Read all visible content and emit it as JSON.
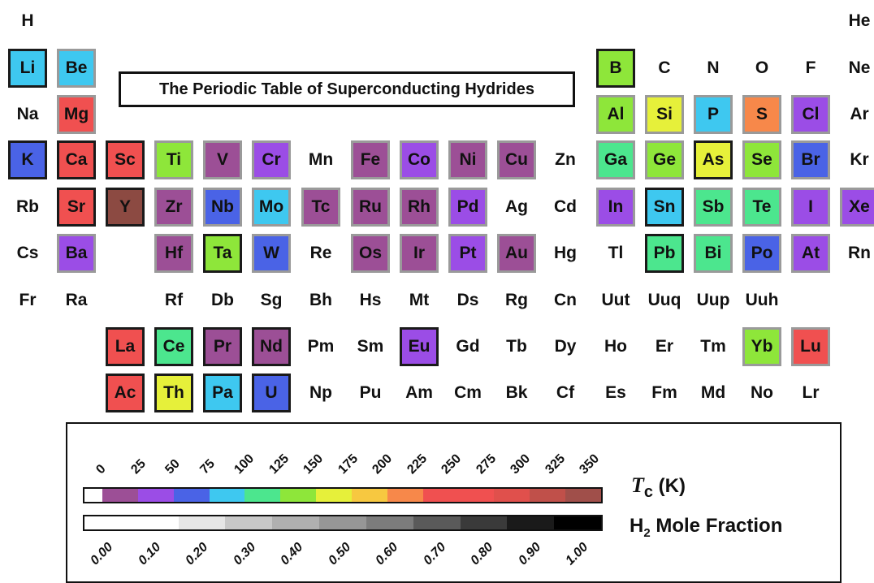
{
  "title": "The Periodic Table of Superconducting Hydrides",
  "elements": [
    {
      "symbol": "H",
      "row": 0,
      "col": 0,
      "color": null,
      "border": "none"
    },
    {
      "symbol": "He",
      "row": 0,
      "col": 17,
      "color": null,
      "border": "none"
    },
    {
      "symbol": "Li",
      "row": 1,
      "col": 0,
      "color": "#3ec8f0",
      "border": "dark"
    },
    {
      "symbol": "Be",
      "row": 1,
      "col": 1,
      "color": "#3ec8f0",
      "border": "grey"
    },
    {
      "symbol": "B",
      "row": 1,
      "col": 12,
      "color": "#8ee63a",
      "border": "dark"
    },
    {
      "symbol": "C",
      "row": 1,
      "col": 13,
      "color": null,
      "border": "none"
    },
    {
      "symbol": "N",
      "row": 1,
      "col": 14,
      "color": null,
      "border": "none"
    },
    {
      "symbol": "O",
      "row": 1,
      "col": 15,
      "color": null,
      "border": "none"
    },
    {
      "symbol": "F",
      "row": 1,
      "col": 16,
      "color": null,
      "border": "none"
    },
    {
      "symbol": "Ne",
      "row": 1,
      "col": 17,
      "color": null,
      "border": "none"
    },
    {
      "symbol": "Na",
      "row": 2,
      "col": 0,
      "color": null,
      "border": "none"
    },
    {
      "symbol": "Mg",
      "row": 2,
      "col": 1,
      "color": "#f05050",
      "border": "grey"
    },
    {
      "symbol": "Al",
      "row": 2,
      "col": 12,
      "color": "#8ee63a",
      "border": "grey"
    },
    {
      "symbol": "Si",
      "row": 2,
      "col": 13,
      "color": "#e6f03a",
      "border": "grey"
    },
    {
      "symbol": "P",
      "row": 2,
      "col": 14,
      "color": "#3ec8f0",
      "border": "grey"
    },
    {
      "symbol": "S",
      "row": 2,
      "col": 15,
      "color": "#f7884a",
      "border": "grey"
    },
    {
      "symbol": "Cl",
      "row": 2,
      "col": 16,
      "color": "#9b4de6",
      "border": "grey"
    },
    {
      "symbol": "Ar",
      "row": 2,
      "col": 17,
      "color": null,
      "border": "none"
    },
    {
      "symbol": "K",
      "row": 3,
      "col": 0,
      "color": "#4a63e6",
      "border": "dark"
    },
    {
      "symbol": "Ca",
      "row": 3,
      "col": 1,
      "color": "#f05050",
      "border": "dark"
    },
    {
      "symbol": "Sc",
      "row": 3,
      "col": 2,
      "color": "#f05050",
      "border": "dark"
    },
    {
      "symbol": "Ti",
      "row": 3,
      "col": 3,
      "color": "#8ee63a",
      "border": "grey"
    },
    {
      "symbol": "V",
      "row": 3,
      "col": 4,
      "color": "#9c4f96",
      "border": "grey"
    },
    {
      "symbol": "Cr",
      "row": 3,
      "col": 5,
      "color": "#9b4de6",
      "border": "grey"
    },
    {
      "symbol": "Mn",
      "row": 3,
      "col": 6,
      "color": null,
      "border": "none"
    },
    {
      "symbol": "Fe",
      "row": 3,
      "col": 7,
      "color": "#9c4f96",
      "border": "grey"
    },
    {
      "symbol": "Co",
      "row": 3,
      "col": 8,
      "color": "#9b4de6",
      "border": "grey"
    },
    {
      "symbol": "Ni",
      "row": 3,
      "col": 9,
      "color": "#9c4f96",
      "border": "grey"
    },
    {
      "symbol": "Cu",
      "row": 3,
      "col": 10,
      "color": "#9c4f96",
      "border": "grey"
    },
    {
      "symbol": "Zn",
      "row": 3,
      "col": 11,
      "color": null,
      "border": "none"
    },
    {
      "symbol": "Ga",
      "row": 3,
      "col": 12,
      "color": "#4ce68e",
      "border": "grey"
    },
    {
      "symbol": "Ge",
      "row": 3,
      "col": 13,
      "color": "#8ee63a",
      "border": "grey"
    },
    {
      "symbol": "As",
      "row": 3,
      "col": 14,
      "color": "#e6f03a",
      "border": "dark"
    },
    {
      "symbol": "Se",
      "row": 3,
      "col": 15,
      "color": "#8ee63a",
      "border": "grey"
    },
    {
      "symbol": "Br",
      "row": 3,
      "col": 16,
      "color": "#4a63e6",
      "border": "grey"
    },
    {
      "symbol": "Kr",
      "row": 3,
      "col": 17,
      "color": null,
      "border": "none"
    },
    {
      "symbol": "Rb",
      "row": 4,
      "col": 0,
      "color": null,
      "border": "none"
    },
    {
      "symbol": "Sr",
      "row": 4,
      "col": 1,
      "color": "#f05050",
      "border": "dark"
    },
    {
      "symbol": "Y",
      "row": 4,
      "col": 2,
      "color": "#8c4a42",
      "border": "dark"
    },
    {
      "symbol": "Zr",
      "row": 4,
      "col": 3,
      "color": "#9c4f96",
      "border": "grey"
    },
    {
      "symbol": "Nb",
      "row": 4,
      "col": 4,
      "color": "#4a63e6",
      "border": "grey"
    },
    {
      "symbol": "Mo",
      "row": 4,
      "col": 5,
      "color": "#3ec8f0",
      "border": "grey"
    },
    {
      "symbol": "Tc",
      "row": 4,
      "col": 6,
      "color": "#9c4f96",
      "border": "grey"
    },
    {
      "symbol": "Ru",
      "row": 4,
      "col": 7,
      "color": "#9c4f96",
      "border": "grey"
    },
    {
      "symbol": "Rh",
      "row": 4,
      "col": 8,
      "color": "#9c4f96",
      "border": "grey"
    },
    {
      "symbol": "Pd",
      "row": 4,
      "col": 9,
      "color": "#9b4de6",
      "border": "grey"
    },
    {
      "symbol": "Ag",
      "row": 4,
      "col": 10,
      "color": null,
      "border": "none"
    },
    {
      "symbol": "Cd",
      "row": 4,
      "col": 11,
      "color": null,
      "border": "none"
    },
    {
      "symbol": "In",
      "row": 4,
      "col": 12,
      "color": "#9b4de6",
      "border": "grey"
    },
    {
      "symbol": "Sn",
      "row": 4,
      "col": 13,
      "color": "#3ec8f0",
      "border": "dark"
    },
    {
      "symbol": "Sb",
      "row": 4,
      "col": 14,
      "color": "#4ce68e",
      "border": "grey"
    },
    {
      "symbol": "Te",
      "row": 4,
      "col": 15,
      "color": "#4ce68e",
      "border": "grey"
    },
    {
      "symbol": "I",
      "row": 4,
      "col": 16,
      "color": "#9b4de6",
      "border": "grey"
    },
    {
      "symbol": "Xe",
      "row": 4,
      "col": 17,
      "color": "#9b4de6",
      "border": "grey"
    },
    {
      "symbol": "Cs",
      "row": 5,
      "col": 0,
      "color": null,
      "border": "none"
    },
    {
      "symbol": "Ba",
      "row": 5,
      "col": 1,
      "color": "#9b4de6",
      "border": "grey"
    },
    {
      "symbol": "Hf",
      "row": 5,
      "col": 3,
      "color": "#9c4f96",
      "border": "grey"
    },
    {
      "symbol": "Ta",
      "row": 5,
      "col": 4,
      "color": "#8ee63a",
      "border": "dark"
    },
    {
      "symbol": "W",
      "row": 5,
      "col": 5,
      "color": "#4a63e6",
      "border": "grey"
    },
    {
      "symbol": "Re",
      "row": 5,
      "col": 6,
      "color": null,
      "border": "none"
    },
    {
      "symbol": "Os",
      "row": 5,
      "col": 7,
      "color": "#9c4f96",
      "border": "grey"
    },
    {
      "symbol": "Ir",
      "row": 5,
      "col": 8,
      "color": "#9c4f96",
      "border": "grey"
    },
    {
      "symbol": "Pt",
      "row": 5,
      "col": 9,
      "color": "#9b4de6",
      "border": "grey"
    },
    {
      "symbol": "Au",
      "row": 5,
      "col": 10,
      "color": "#9c4f96",
      "border": "grey"
    },
    {
      "symbol": "Hg",
      "row": 5,
      "col": 11,
      "color": null,
      "border": "none"
    },
    {
      "symbol": "Tl",
      "row": 5,
      "col": 12,
      "color": null,
      "border": "none"
    },
    {
      "symbol": "Pb",
      "row": 5,
      "col": 13,
      "color": "#4ce68e",
      "border": "dark"
    },
    {
      "symbol": "Bi",
      "row": 5,
      "col": 14,
      "color": "#4ce68e",
      "border": "grey"
    },
    {
      "symbol": "Po",
      "row": 5,
      "col": 15,
      "color": "#4a63e6",
      "border": "grey"
    },
    {
      "symbol": "At",
      "row": 5,
      "col": 16,
      "color": "#9b4de6",
      "border": "grey"
    },
    {
      "symbol": "Rn",
      "row": 5,
      "col": 17,
      "color": null,
      "border": "none"
    },
    {
      "symbol": "Fr",
      "row": 6,
      "col": 0,
      "color": null,
      "border": "none"
    },
    {
      "symbol": "Ra",
      "row": 6,
      "col": 1,
      "color": null,
      "border": "none"
    },
    {
      "symbol": "Rf",
      "row": 6,
      "col": 3,
      "color": null,
      "border": "none"
    },
    {
      "symbol": "Db",
      "row": 6,
      "col": 4,
      "color": null,
      "border": "none"
    },
    {
      "symbol": "Sg",
      "row": 6,
      "col": 5,
      "color": null,
      "border": "none"
    },
    {
      "symbol": "Bh",
      "row": 6,
      "col": 6,
      "color": null,
      "border": "none"
    },
    {
      "symbol": "Hs",
      "row": 6,
      "col": 7,
      "color": null,
      "border": "none"
    },
    {
      "symbol": "Mt",
      "row": 6,
      "col": 8,
      "color": null,
      "border": "none"
    },
    {
      "symbol": "Ds",
      "row": 6,
      "col": 9,
      "color": null,
      "border": "none"
    },
    {
      "symbol": "Rg",
      "row": 6,
      "col": 10,
      "color": null,
      "border": "none"
    },
    {
      "symbol": "Cn",
      "row": 6,
      "col": 11,
      "color": null,
      "border": "none"
    },
    {
      "symbol": "Uut",
      "row": 6,
      "col": 12,
      "color": null,
      "border": "none"
    },
    {
      "symbol": "Uuq",
      "row": 6,
      "col": 13,
      "color": null,
      "border": "none"
    },
    {
      "symbol": "Uup",
      "row": 6,
      "col": 14,
      "color": null,
      "border": "none"
    },
    {
      "symbol": "Uuh",
      "row": 6,
      "col": 15,
      "color": null,
      "border": "none"
    },
    {
      "symbol": "La",
      "row": 7,
      "col": 2,
      "color": "#f05050",
      "border": "dark"
    },
    {
      "symbol": "Ce",
      "row": 7,
      "col": 3,
      "color": "#4ce68e",
      "border": "dark"
    },
    {
      "symbol": "Pr",
      "row": 7,
      "col": 4,
      "color": "#9c4f96",
      "border": "dark"
    },
    {
      "symbol": "Nd",
      "row": 7,
      "col": 5,
      "color": "#9c4f96",
      "border": "dark"
    },
    {
      "symbol": "Pm",
      "row": 7,
      "col": 6,
      "color": null,
      "border": "none"
    },
    {
      "symbol": "Sm",
      "row": 7,
      "col": 7,
      "color": null,
      "border": "none"
    },
    {
      "symbol": "Eu",
      "row": 7,
      "col": 8,
      "color": "#9b4de6",
      "border": "dark"
    },
    {
      "symbol": "Gd",
      "row": 7,
      "col": 9,
      "color": null,
      "border": "none"
    },
    {
      "symbol": "Tb",
      "row": 7,
      "col": 10,
      "color": null,
      "border": "none"
    },
    {
      "symbol": "Dy",
      "row": 7,
      "col": 11,
      "color": null,
      "border": "none"
    },
    {
      "symbol": "Ho",
      "row": 7,
      "col": 12,
      "color": null,
      "border": "none"
    },
    {
      "symbol": "Er",
      "row": 7,
      "col": 13,
      "color": null,
      "border": "none"
    },
    {
      "symbol": "Tm",
      "row": 7,
      "col": 14,
      "color": null,
      "border": "none"
    },
    {
      "symbol": "Yb",
      "row": 7,
      "col": 15,
      "color": "#8ee63a",
      "border": "grey"
    },
    {
      "symbol": "Lu",
      "row": 7,
      "col": 16,
      "color": "#f05050",
      "border": "grey"
    },
    {
      "symbol": "Ac",
      "row": 8,
      "col": 2,
      "color": "#f05050",
      "border": "dark"
    },
    {
      "symbol": "Th",
      "row": 8,
      "col": 3,
      "color": "#e6f03a",
      "border": "dark"
    },
    {
      "symbol": "Pa",
      "row": 8,
      "col": 4,
      "color": "#3ec8f0",
      "border": "dark"
    },
    {
      "symbol": "U",
      "row": 8,
      "col": 5,
      "color": "#4a63e6",
      "border": "dark"
    },
    {
      "symbol": "Np",
      "row": 8,
      "col": 6,
      "color": null,
      "border": "none"
    },
    {
      "symbol": "Pu",
      "row": 8,
      "col": 7,
      "color": null,
      "border": "none"
    },
    {
      "symbol": "Am",
      "row": 8,
      "col": 8,
      "color": null,
      "border": "none"
    },
    {
      "symbol": "Cm",
      "row": 8,
      "col": 9,
      "color": null,
      "border": "none"
    },
    {
      "symbol": "Bk",
      "row": 8,
      "col": 10,
      "color": null,
      "border": "none"
    },
    {
      "symbol": "Cf",
      "row": 8,
      "col": 11,
      "color": null,
      "border": "none"
    },
    {
      "symbol": "Es",
      "row": 8,
      "col": 12,
      "color": null,
      "border": "none"
    },
    {
      "symbol": "Fm",
      "row": 8,
      "col": 13,
      "color": null,
      "border": "none"
    },
    {
      "symbol": "Md",
      "row": 8,
      "col": 14,
      "color": null,
      "border": "none"
    },
    {
      "symbol": "No",
      "row": 8,
      "col": 15,
      "color": null,
      "border": "none"
    },
    {
      "symbol": "Lr",
      "row": 8,
      "col": 16,
      "color": null,
      "border": "none"
    }
  ],
  "legend": {
    "tc_label_symbol": "T",
    "tc_label_sub": "c",
    "tc_label_unit": " (K)",
    "tc_ticks": [
      "0",
      "25",
      "50",
      "75",
      "100",
      "125",
      "150",
      "175",
      "200",
      "225",
      "250",
      "275",
      "300",
      "325",
      "350"
    ],
    "tc_colors": [
      "#ffffff",
      "#9c4f96",
      "#9b4de6",
      "#4a63e6",
      "#3ec8f0",
      "#4ce68e",
      "#8ee63a",
      "#e6f03a",
      "#f7c840",
      "#f7884a",
      "#f05050",
      "#f05050",
      "#e0504c",
      "#c0504a",
      "#a04f4a"
    ],
    "h2_label_pre": "H",
    "h2_label_sub": "2",
    "h2_label_post": " Mole Fraction",
    "h2_ticks": [
      "0.00",
      "0.10",
      "0.20",
      "0.30",
      "0.40",
      "0.50",
      "0.60",
      "0.70",
      "0.80",
      "0.90",
      "1.00"
    ],
    "h2_colors": [
      "#ffffff",
      "#ffffff",
      "#e6e6e6",
      "#c8c8c8",
      "#b0b0b0",
      "#969696",
      "#7c7c7c",
      "#5a5a5a",
      "#3a3a3a",
      "#1a1a1a",
      "#000000"
    ]
  }
}
